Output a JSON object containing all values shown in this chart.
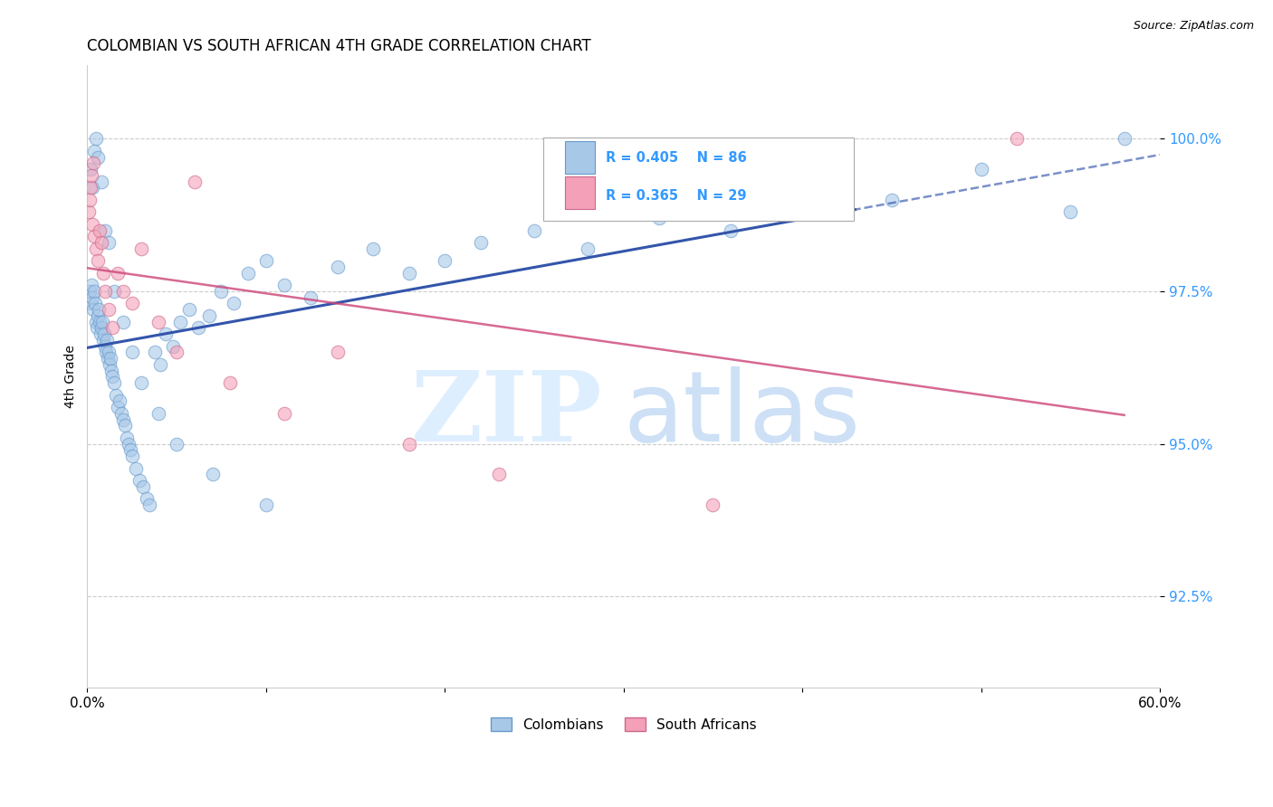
{
  "title": "COLOMBIAN VS SOUTH AFRICAN 4TH GRADE CORRELATION CHART",
  "source": "Source: ZipAtlas.com",
  "ylabel": "4th Grade",
  "x_range": [
    0.0,
    60.0
  ],
  "y_range": [
    91.0,
    101.2
  ],
  "y_ticks": [
    92.5,
    95.0,
    97.5,
    100.0
  ],
  "legend_R_blue": "R = 0.405",
  "legend_N_blue": "N = 86",
  "legend_R_pink": "R = 0.365",
  "legend_N_pink": "N = 29",
  "blue_marker_color": "#a8c8e8",
  "blue_marker_edge": "#6699cc",
  "pink_marker_color": "#f4a0b8",
  "pink_marker_edge": "#cc6688",
  "blue_line_color": "#3355aa",
  "pink_line_color": "#cc4477",
  "text_blue": "#3399ff",
  "watermark_color": "#ddeeff",
  "colombians_x": [
    0.15,
    0.2,
    0.25,
    0.3,
    0.35,
    0.4,
    0.45,
    0.5,
    0.55,
    0.6,
    0.65,
    0.7,
    0.75,
    0.8,
    0.85,
    0.9,
    0.95,
    1.0,
    1.05,
    1.1,
    1.15,
    1.2,
    1.25,
    1.3,
    1.35,
    1.4,
    1.5,
    1.6,
    1.7,
    1.8,
    1.9,
    2.0,
    2.1,
    2.2,
    2.3,
    2.4,
    2.5,
    2.7,
    2.9,
    3.1,
    3.3,
    3.5,
    3.8,
    4.1,
    4.4,
    4.8,
    5.2,
    5.7,
    6.2,
    6.8,
    7.5,
    8.2,
    9.0,
    10.0,
    11.0,
    12.5,
    14.0,
    16.0,
    18.0,
    20.0,
    22.0,
    25.0,
    28.0,
    32.0,
    36.0,
    40.0,
    45.0,
    50.0,
    55.0,
    58.0,
    0.2,
    0.3,
    0.4,
    0.5,
    0.6,
    0.8,
    1.0,
    1.2,
    1.5,
    2.0,
    2.5,
    3.0,
    4.0,
    5.0,
    7.0,
    10.0
  ],
  "colombians_y": [
    97.5,
    97.3,
    97.6,
    97.4,
    97.2,
    97.5,
    97.3,
    97.0,
    96.9,
    97.1,
    97.2,
    97.0,
    96.8,
    96.9,
    97.0,
    96.7,
    96.8,
    96.6,
    96.5,
    96.7,
    96.4,
    96.5,
    96.3,
    96.4,
    96.2,
    96.1,
    96.0,
    95.8,
    95.6,
    95.7,
    95.5,
    95.4,
    95.3,
    95.1,
    95.0,
    94.9,
    94.8,
    94.6,
    94.4,
    94.3,
    94.1,
    94.0,
    96.5,
    96.3,
    96.8,
    96.6,
    97.0,
    97.2,
    96.9,
    97.1,
    97.5,
    97.3,
    97.8,
    98.0,
    97.6,
    97.4,
    97.9,
    98.2,
    97.8,
    98.0,
    98.3,
    98.5,
    98.2,
    98.7,
    98.5,
    98.9,
    99.0,
    99.5,
    98.8,
    100.0,
    99.5,
    99.2,
    99.8,
    100.0,
    99.7,
    99.3,
    98.5,
    98.3,
    97.5,
    97.0,
    96.5,
    96.0,
    95.5,
    95.0,
    94.5,
    94.0
  ],
  "south_africans_x": [
    0.1,
    0.15,
    0.2,
    0.25,
    0.3,
    0.35,
    0.4,
    0.5,
    0.6,
    0.7,
    0.8,
    0.9,
    1.0,
    1.2,
    1.4,
    1.7,
    2.0,
    2.5,
    3.0,
    4.0,
    5.0,
    6.0,
    8.0,
    11.0,
    14.0,
    18.0,
    23.0,
    35.0,
    52.0
  ],
  "south_africans_y": [
    98.8,
    99.0,
    99.2,
    99.4,
    98.6,
    99.6,
    98.4,
    98.2,
    98.0,
    98.5,
    98.3,
    97.8,
    97.5,
    97.2,
    96.9,
    97.8,
    97.5,
    97.3,
    98.2,
    97.0,
    96.5,
    99.3,
    96.0,
    95.5,
    96.5,
    95.0,
    94.5,
    94.0,
    100.0
  ]
}
